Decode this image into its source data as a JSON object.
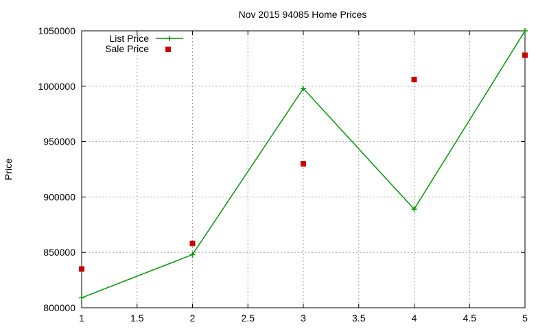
{
  "chart_data": {
    "type": "line",
    "title": "Nov 2015 94085 Home Prices",
    "xlabel": "",
    "ylabel": "Price",
    "xlim": [
      1,
      5
    ],
    "ylim": [
      800000,
      1050000
    ],
    "x_ticks": [
      "1",
      "1.5",
      "2",
      "2.5",
      "3",
      "3.5",
      "4",
      "4.5",
      "5"
    ],
    "y_ticks": [
      "800000",
      "850000",
      "900000",
      "950000",
      "1000000",
      "1050000"
    ],
    "grid": true,
    "legend_position": "top-left",
    "series": [
      {
        "name": "List Price",
        "style": "linespoints",
        "marker": "plus",
        "color": "#009900",
        "x": [
          1,
          2,
          3,
          4,
          5
        ],
        "values": [
          809000,
          848000,
          998000,
          889000,
          1050000
        ]
      },
      {
        "name": "Sale Price",
        "style": "points",
        "marker": "square",
        "color": "#cc0000",
        "x": [
          1,
          2,
          3,
          4,
          5
        ],
        "values": [
          835000,
          858000,
          930000,
          1006000,
          1028000
        ]
      }
    ]
  }
}
